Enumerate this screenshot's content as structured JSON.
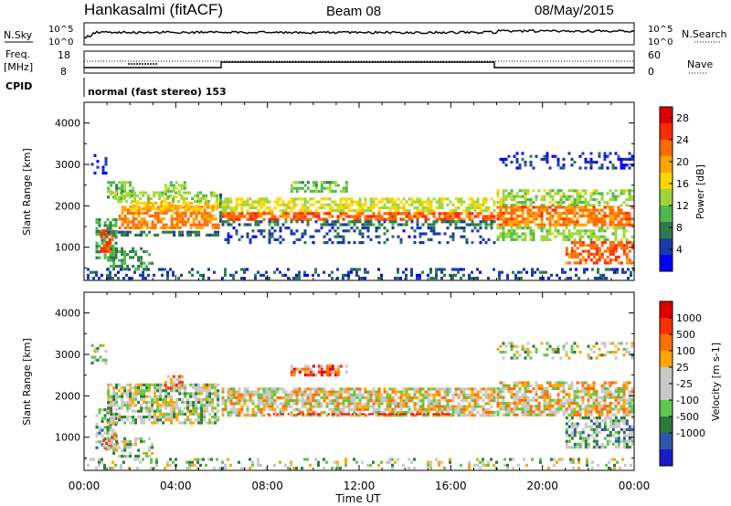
{
  "header": {
    "station": "Hankasalmi (fitACF)",
    "beam": "Beam 08",
    "date": "08/May/2015"
  },
  "panels": {
    "nsky_label": "N.Sky",
    "nsky_scale_top": "10^5",
    "nsky_scale_bottom": "10^0",
    "nsearch_label": "N.Search",
    "nsearch_scale_top": "10^5",
    "nsearch_scale_bottom": "10^0",
    "freq_label_1": "Freq.",
    "freq_label_2": "[MHz]",
    "freq_ticks": [
      "18",
      "8"
    ],
    "nave_label": "Nave",
    "nave_ticks": [
      "60",
      "0"
    ],
    "cpid_label": "CPID",
    "cpid_text": "normal (fast stereo) 153"
  },
  "colors": {
    "power": [
      "#0000ff",
      "#1a3ca8",
      "#2f7a4a",
      "#4db84d",
      "#9ed63a",
      "#ffd700",
      "#ffa500",
      "#ff6a00",
      "#ff2a00",
      "#e00000"
    ],
    "velocity": [
      "#1a1acd",
      "#2f56a8",
      "#2d7a3a",
      "#5ec84a",
      "#c8c8c8",
      "#c8c8c8",
      "#ffa500",
      "#ff7000",
      "#ff3000",
      "#e00000"
    ],
    "velocity_line": "#ff0000"
  },
  "chart_data": [
    {
      "type": "heatmap",
      "name": "power",
      "ylabel": "Slant Range [km]",
      "y_ticks": [
        "1000",
        "2000",
        "3000",
        "4000"
      ],
      "ylim": [
        200,
        4500
      ],
      "x_ticks": [
        "00:00",
        "04:00",
        "08:00",
        "12:00",
        "16:00",
        "20:00",
        "00:00"
      ],
      "xlim_hours": [
        0,
        24
      ],
      "colorbar_label": "Power [dB]",
      "colorbar_ticks": [
        "4",
        "8",
        "12",
        "16",
        "20",
        "24",
        "28"
      ],
      "colorbar_range": [
        0,
        30
      ],
      "bands": [
        {
          "t0": 0.3,
          "t1": 1.0,
          "r0": 2750,
          "r1": 3250,
          "v": 3,
          "d": 0.35
        },
        {
          "t0": 0.5,
          "t1": 1.5,
          "r0": 700,
          "r1": 1700,
          "v": 10,
          "d": 0.55
        },
        {
          "t0": 0.7,
          "t1": 1.3,
          "r0": 850,
          "r1": 1500,
          "v": 24,
          "d": 0.6
        },
        {
          "t0": 1.0,
          "t1": 2.2,
          "r0": 2200,
          "r1": 2600,
          "v": 11,
          "d": 0.6
        },
        {
          "t0": 1.0,
          "t1": 3.0,
          "r0": 450,
          "r1": 1000,
          "v": 9,
          "d": 0.45
        },
        {
          "t0": 1.0,
          "t1": 5.9,
          "r0": 1250,
          "r1": 1400,
          "v": 7,
          "d": 0.55
        },
        {
          "t0": 1.2,
          "t1": 5.9,
          "r0": 2100,
          "r1": 2350,
          "v": 13,
          "d": 0.55
        },
        {
          "t0": 1.5,
          "t1": 5.9,
          "r0": 1450,
          "r1": 2000,
          "v": 21,
          "d": 0.75
        },
        {
          "t0": 2.0,
          "t1": 5.9,
          "r0": 1900,
          "r1": 2100,
          "v": 18,
          "d": 0.7
        },
        {
          "t0": 3.5,
          "t1": 4.5,
          "r0": 2200,
          "r1": 2600,
          "v": 13,
          "d": 0.55
        },
        {
          "t0": 5.9,
          "t1": 6.0,
          "r0": 1500,
          "r1": 2300,
          "v": 8,
          "d": 0.9
        },
        {
          "t0": 6.0,
          "t1": 18.0,
          "r0": 1100,
          "r1": 1500,
          "v": 5,
          "d": 0.25
        },
        {
          "t0": 6.0,
          "t1": 18.0,
          "r0": 1850,
          "r1": 2200,
          "v": 15,
          "d": 0.65
        },
        {
          "t0": 6.0,
          "t1": 18.0,
          "r0": 1650,
          "r1": 1850,
          "v": 23,
          "d": 0.7
        },
        {
          "t0": 6.0,
          "t1": 18.0,
          "r0": 1500,
          "r1": 1650,
          "v": 7,
          "d": 0.5
        },
        {
          "t0": 9.0,
          "t1": 11.5,
          "r0": 2350,
          "r1": 2600,
          "v": 11,
          "d": 0.5
        },
        {
          "t0": 18.0,
          "t1": 24.0,
          "r0": 2900,
          "r1": 3300,
          "v": 4,
          "d": 0.3
        },
        {
          "t0": 18.0,
          "t1": 24.0,
          "r0": 2000,
          "r1": 2400,
          "v": 13,
          "d": 0.55
        },
        {
          "t0": 18.0,
          "t1": 24.0,
          "r0": 1500,
          "r1": 2000,
          "v": 22,
          "d": 0.7
        },
        {
          "t0": 18.0,
          "t1": 24.0,
          "r0": 1150,
          "r1": 1500,
          "v": 13,
          "d": 0.55
        },
        {
          "t0": 21.0,
          "t1": 24.0,
          "r0": 600,
          "r1": 1150,
          "v": 23,
          "d": 0.65
        },
        {
          "t0": 0.0,
          "t1": 24.0,
          "r0": 200,
          "r1": 500,
          "v": 5,
          "d": 0.3
        }
      ]
    },
    {
      "type": "heatmap",
      "name": "velocity",
      "ylabel": "Slant Range [km]",
      "y_ticks": [
        "1000",
        "2000",
        "3000",
        "4000"
      ],
      "ylim": [
        200,
        4500
      ],
      "x_ticks": [
        "00:00",
        "04:00",
        "08:00",
        "12:00",
        "16:00",
        "20:00",
        "00:00"
      ],
      "xlim_hours": [
        0,
        24
      ],
      "xlabel": "Time UT",
      "colorbar_label": "Velocity [m s-1]",
      "colorbar_ticks": [
        "1000",
        "500",
        "100",
        "25",
        "-25",
        "-100",
        "-500",
        "-1000"
      ],
      "bands": [
        {
          "t0": 0.3,
          "t1": 1.0,
          "r0": 2750,
          "r1": 3250,
          "v": 4,
          "d": 0.35
        },
        {
          "t0": 0.5,
          "t1": 1.5,
          "r0": 700,
          "r1": 1700,
          "v": 3,
          "d": 0.6
        },
        {
          "t0": 0.8,
          "t1": 1.5,
          "r0": 700,
          "r1": 1100,
          "v": 6,
          "d": 0.5
        },
        {
          "t0": 1.0,
          "t1": 5.9,
          "r0": 1300,
          "r1": 2300,
          "v": 4,
          "d": 0.7
        },
        {
          "t0": 1.0,
          "t1": 3.0,
          "r0": 500,
          "r1": 1000,
          "v": 4,
          "d": 0.45
        },
        {
          "t0": 3.5,
          "t1": 4.5,
          "r0": 2150,
          "r1": 2500,
          "v": 6,
          "d": 0.6
        },
        {
          "t0": 6.0,
          "t1": 18.0,
          "r0": 1500,
          "r1": 2200,
          "v": 5,
          "d": 0.75
        },
        {
          "t0": 9.0,
          "t1": 11.5,
          "r0": 2450,
          "r1": 2750,
          "v": 7,
          "d": 0.6
        },
        {
          "t0": 18.0,
          "t1": 24.0,
          "r0": 1500,
          "r1": 2350,
          "v": 5,
          "d": 0.7
        },
        {
          "t0": 21.0,
          "t1": 24.0,
          "r0": 700,
          "r1": 1500,
          "v": 3,
          "d": 0.6
        },
        {
          "t0": 18.0,
          "t1": 24.0,
          "r0": 2900,
          "r1": 3300,
          "v": 4,
          "d": 0.3
        },
        {
          "t0": 0.0,
          "t1": 24.0,
          "r0": 200,
          "r1": 500,
          "v": 4,
          "d": 0.25
        }
      ],
      "red_line": {
        "t0": 8.0,
        "t1": 16.0,
        "r": 1580
      }
    }
  ]
}
